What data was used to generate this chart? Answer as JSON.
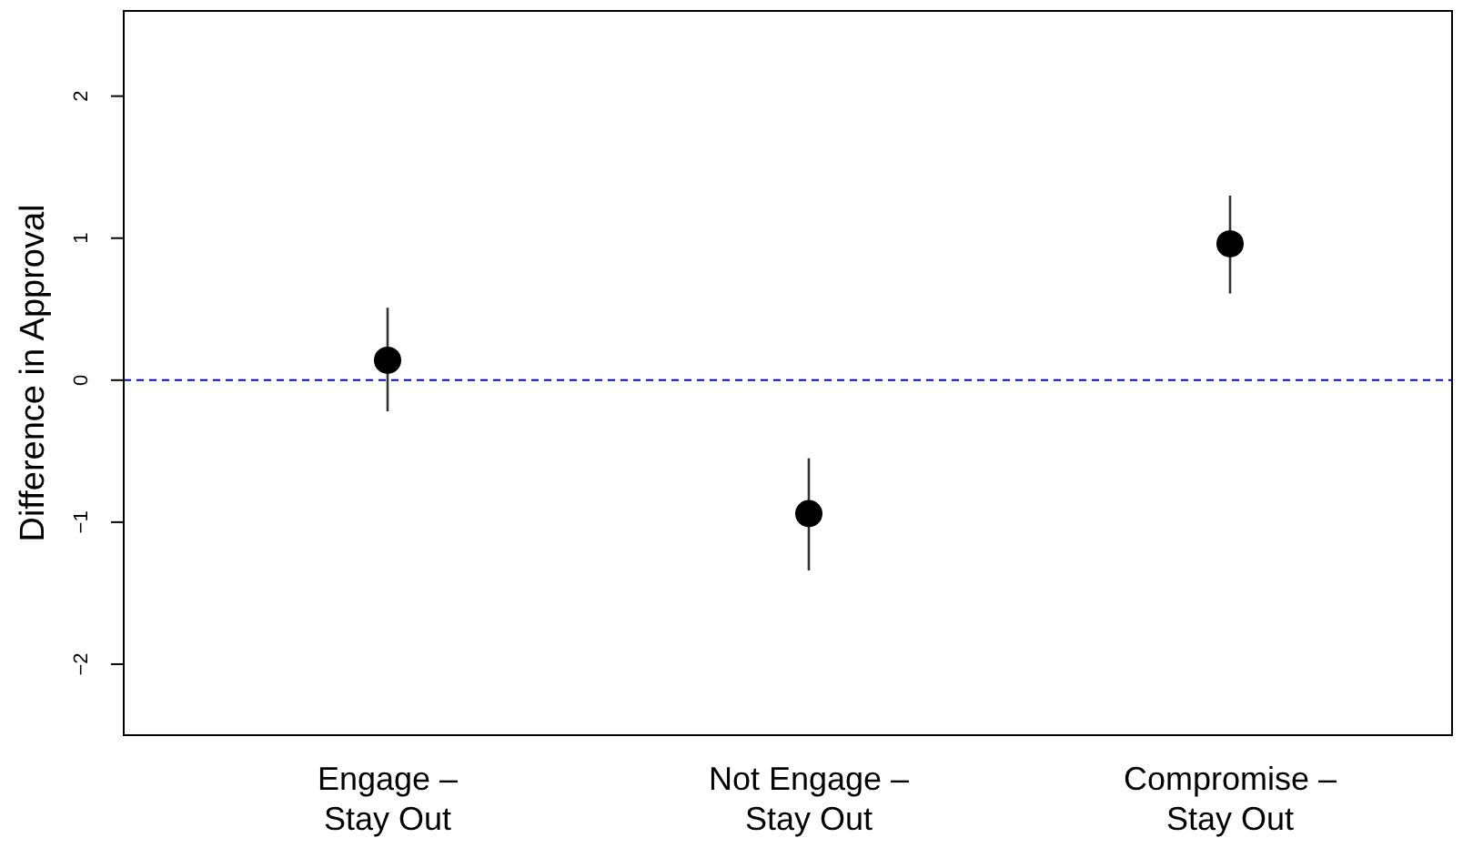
{
  "chart_data": {
    "type": "scatter",
    "ylabel": "Difference in Approval",
    "categories": [
      "Engage –\nStay Out",
      "Not Engage –\nStay Out",
      "Compromise –\nStay Out"
    ],
    "series": [
      {
        "color": "#000000",
        "values": [
          0.14,
          -0.94,
          0.96
        ],
        "errors": [
          [
            -0.22,
            0.51
          ],
          [
            -1.34,
            -0.55
          ],
          [
            0.61,
            1.3
          ]
        ]
      }
    ],
    "ylim": [
      -2.5,
      2.6
    ],
    "yticks": [
      -2,
      -1,
      0,
      1,
      2
    ],
    "marker": "circle",
    "ref_lines": [
      {
        "axis": "y",
        "value": 0,
        "color": "#0000ff",
        "line_style": "dashed"
      }
    ]
  }
}
